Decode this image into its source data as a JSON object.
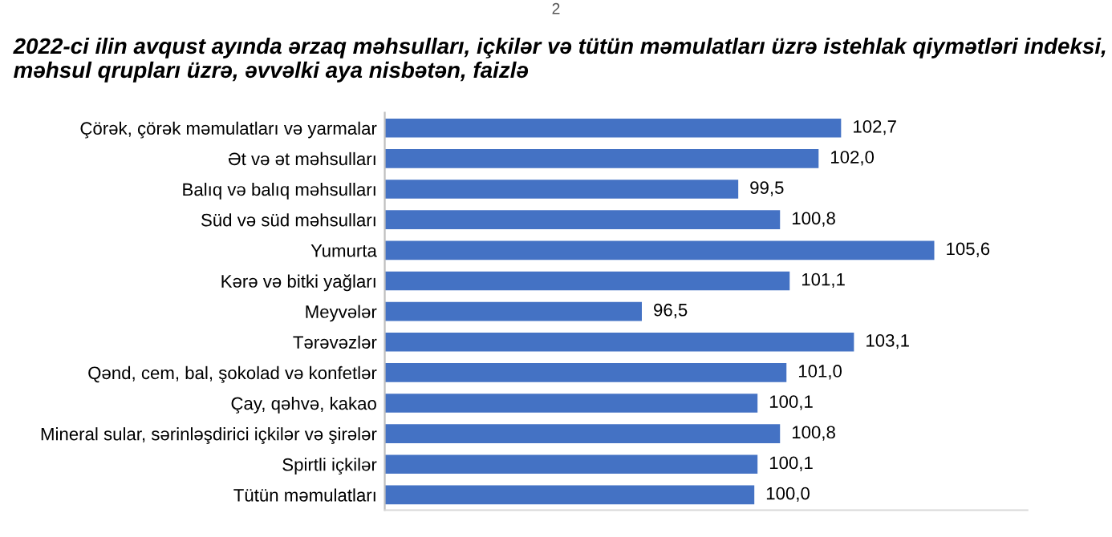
{
  "chart_data": {
    "type": "bar",
    "orientation": "horizontal",
    "title": "2022-ci ilin avqust ayında ərzaq məhsulları, içkilər və tütün məmulatları üzrə istehlak qiymətləri indeksi, məhsul qrupları üzrə, əvvəlki aya nisbətən, faizlə",
    "categories": [
      "Çörək, çörək məmulatları və yarmalar",
      "Ət və ət məhsulları",
      "Balıq və balıq məhsulları",
      "Süd və süd məhsulları",
      "Yumurta",
      "Kərə və bitki yağları",
      "Meyvələr",
      "Tərəvəzlər",
      "Qənd, cem, bal, şokolad və konfetlər",
      "Çay, qəhvə, kakao",
      "Mineral sular, sərinləşdirici içkilər və şirələr",
      "Spirtli içkilər",
      "Tütün məmulatları"
    ],
    "values": [
      102.7,
      102.0,
      99.5,
      100.8,
      105.6,
      101.1,
      96.5,
      103.1,
      101.0,
      100.1,
      100.8,
      100.1,
      100.0
    ],
    "value_labels": [
      "102,7",
      "102,0",
      "99,5",
      "100,8",
      "105,6",
      "101,1",
      "96,5",
      "103,1",
      "101,0",
      "100,1",
      "100,8",
      "100,1",
      "100,0"
    ],
    "color": "#4472c4",
    "xlim": [
      88.5,
      108.5
    ],
    "tick_labels": "y",
    "grid": false,
    "annotations": [
      "2"
    ]
  }
}
